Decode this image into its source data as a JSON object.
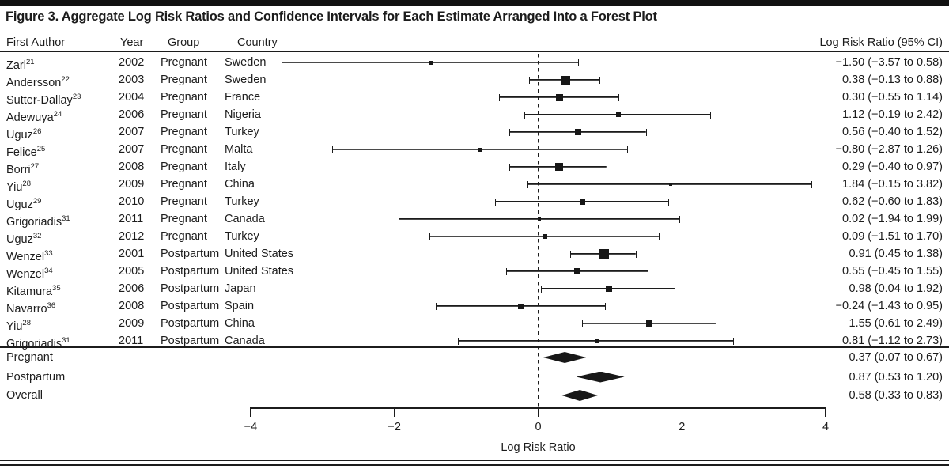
{
  "figure": {
    "title": "Figure 3. Aggregate Log Risk Ratios and Confidence Intervals for Each Estimate Arranged Into a Forest Plot"
  },
  "chart_data": {
    "type": "scatter",
    "subtype": "forest-plot",
    "columns": [
      "First Author",
      "Year",
      "Group",
      "Country"
    ],
    "value_header": "Log Risk Ratio (95% CI)",
    "xlabel": "Log Risk Ratio",
    "xlim": [
      -4,
      4
    ],
    "x_ticks": [
      {
        "v": -4,
        "label": "−4"
      },
      {
        "v": -2,
        "label": "−2"
      },
      {
        "v": 0,
        "label": "0"
      },
      {
        "v": 2,
        "label": "2"
      },
      {
        "v": 4,
        "label": "4"
      }
    ],
    "zero_line": 0,
    "grid": false,
    "studies": [
      {
        "author": "Zarl",
        "ref": "21",
        "year": "2002",
        "group": "Pregnant",
        "country": "Sweden",
        "est": -1.5,
        "lo": -3.57,
        "hi": 0.58,
        "marker": 5,
        "value": "−1.50 (−3.57 to 0.58)"
      },
      {
        "author": "Andersson",
        "ref": "22",
        "year": "2003",
        "group": "Pregnant",
        "country": "Sweden",
        "est": 0.38,
        "lo": -0.13,
        "hi": 0.88,
        "marker": 11,
        "value": "0.38 (−0.13 to 0.88)"
      },
      {
        "author": "Sutter-Dallay",
        "ref": "23",
        "year": "2004",
        "group": "Pregnant",
        "country": "France",
        "est": 0.3,
        "lo": -0.55,
        "hi": 1.14,
        "marker": 9,
        "value": "0.30 (−0.55 to 1.14)"
      },
      {
        "author": "Adewuya",
        "ref": "24",
        "year": "2006",
        "group": "Pregnant",
        "country": "Nigeria",
        "est": 1.12,
        "lo": -0.19,
        "hi": 2.42,
        "marker": 6,
        "value": "1.12 (−0.19 to 2.42)"
      },
      {
        "author": "Uguz",
        "ref": "26",
        "year": "2007",
        "group": "Pregnant",
        "country": "Turkey",
        "est": 0.56,
        "lo": -0.4,
        "hi": 1.52,
        "marker": 8,
        "value": "0.56 (−0.40 to 1.52)"
      },
      {
        "author": "Felice",
        "ref": "25",
        "year": "2007",
        "group": "Pregnant",
        "country": "Malta",
        "est": -0.8,
        "lo": -2.87,
        "hi": 1.26,
        "marker": 5,
        "value": "−0.80 (−2.87 to 1.26)"
      },
      {
        "author": "Borri",
        "ref": "27",
        "year": "2008",
        "group": "Pregnant",
        "country": "Italy",
        "est": 0.29,
        "lo": -0.4,
        "hi": 0.97,
        "marker": 10,
        "value": "0.29 (−0.40 to 0.97)"
      },
      {
        "author": "Yiu",
        "ref": "28",
        "year": "2009",
        "group": "Pregnant",
        "country": "China",
        "est": 1.84,
        "lo": -0.15,
        "hi": 3.82,
        "marker": 4,
        "value": "1.84 (−0.15 to 3.82)"
      },
      {
        "author": "Uguz",
        "ref": "29",
        "year": "2010",
        "group": "Pregnant",
        "country": "Turkey",
        "est": 0.62,
        "lo": -0.6,
        "hi": 1.83,
        "marker": 7,
        "value": "0.62 (−0.60 to 1.83)"
      },
      {
        "author": "Grigoriadis",
        "ref": "31",
        "year": "2011",
        "group": "Pregnant",
        "country": "Canada",
        "est": 0.02,
        "lo": -1.94,
        "hi": 1.99,
        "marker": 4,
        "value": "0.02 (−1.94 to 1.99)"
      },
      {
        "author": "Uguz",
        "ref": "32",
        "year": "2012",
        "group": "Pregnant",
        "country": "Turkey",
        "est": 0.09,
        "lo": -1.51,
        "hi": 1.7,
        "marker": 6,
        "value": "0.09 (−1.51 to 1.70)"
      },
      {
        "author": "Wenzel",
        "ref": "33",
        "year": "2001",
        "group": "Postpartum",
        "country": "United States",
        "est": 0.91,
        "lo": 0.45,
        "hi": 1.38,
        "marker": 13,
        "value": "0.91 (0.45 to 1.38)"
      },
      {
        "author": "Wenzel",
        "ref": "34",
        "year": "2005",
        "group": "Postpartum",
        "country": "United States",
        "est": 0.55,
        "lo": -0.45,
        "hi": 1.55,
        "marker": 8,
        "value": "0.55 (−0.45 to 1.55)"
      },
      {
        "author": "Kitamura",
        "ref": "35",
        "year": "2006",
        "group": "Postpartum",
        "country": "Japan",
        "est": 0.98,
        "lo": 0.04,
        "hi": 1.92,
        "marker": 8,
        "value": "0.98 (0.04 to 1.92)"
      },
      {
        "author": "Navarro",
        "ref": "36",
        "year": "2008",
        "group": "Postpartum",
        "country": "Spain",
        "est": -0.24,
        "lo": -1.43,
        "hi": 0.95,
        "marker": 7,
        "value": "−0.24 (−1.43 to 0.95)"
      },
      {
        "author": "Yiu",
        "ref": "28",
        "year": "2009",
        "group": "Postpartum",
        "country": "China",
        "est": 1.55,
        "lo": 0.61,
        "hi": 2.49,
        "marker": 8,
        "value": "1.55 (0.61 to 2.49)"
      },
      {
        "author": "Grigoriadis",
        "ref": "31",
        "year": "2011",
        "group": "Postpartum",
        "country": "Canada",
        "est": 0.81,
        "lo": -1.12,
        "hi": 2.73,
        "marker": 5,
        "value": "0.81 (−1.12 to 2.73)"
      }
    ],
    "summaries": [
      {
        "label": "Pregnant",
        "est": 0.37,
        "lo": 0.07,
        "hi": 0.67,
        "value": "0.37 (0.07 to 0.67)"
      },
      {
        "label": "Postpartum",
        "est": 0.87,
        "lo": 0.53,
        "hi": 1.2,
        "value": "0.87 (0.53 to 1.20)"
      },
      {
        "label": "Overall",
        "est": 0.58,
        "lo": 0.33,
        "hi": 0.83,
        "value": "0.58 (0.33 to 0.83)"
      }
    ]
  }
}
